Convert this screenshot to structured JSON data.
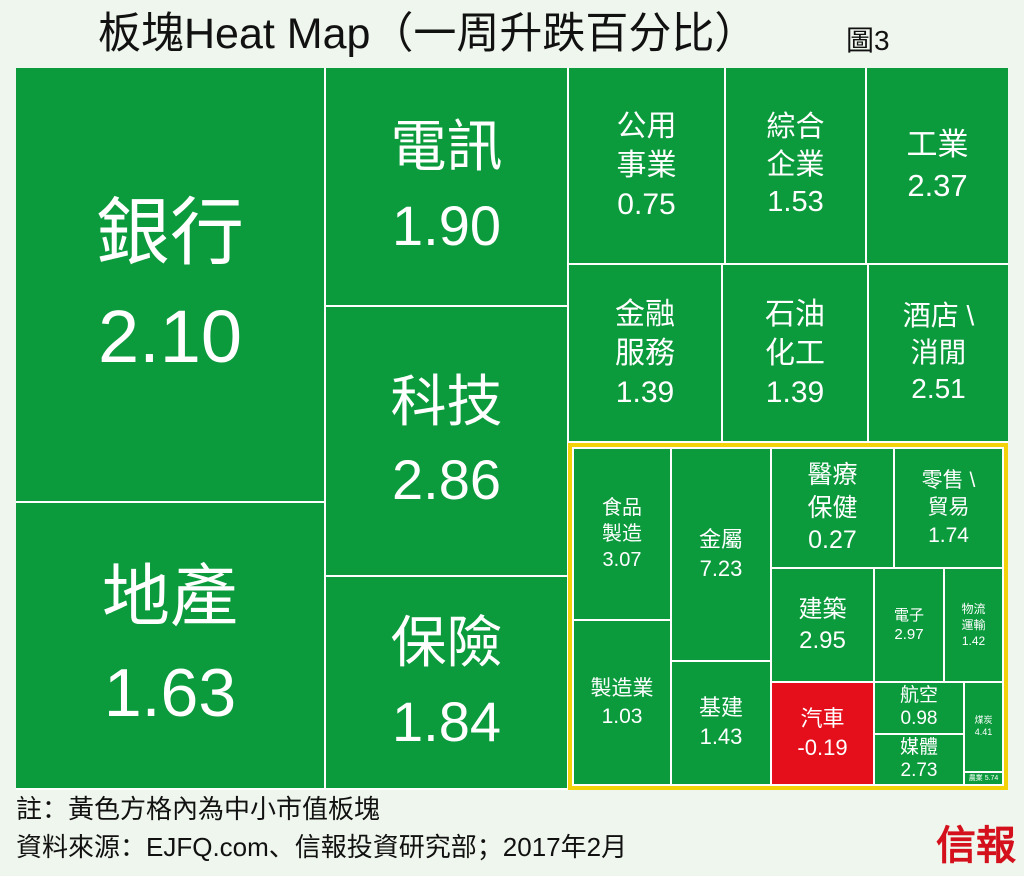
{
  "header": {
    "figure_label": "圖3"
  },
  "chart_data": {
    "type": "heatmap",
    "title": "板塊Heat Map（一周升跌百分比）",
    "colors": {
      "positive": "#0b9a3c",
      "negative": "#e50f1c",
      "highlight_border": "#f4d20a",
      "text": "#ffffff"
    },
    "tiles": [
      {
        "label": "銀行",
        "value": 2.1,
        "small_mid_cap": false
      },
      {
        "label": "地產",
        "value": 1.63,
        "small_mid_cap": false
      },
      {
        "label": "電訊",
        "value": 1.9,
        "small_mid_cap": false
      },
      {
        "label": "科技",
        "value": 2.86,
        "small_mid_cap": false
      },
      {
        "label": "保險",
        "value": 1.84,
        "small_mid_cap": false
      },
      {
        "label": "公用\n事業",
        "value": 0.75,
        "small_mid_cap": false
      },
      {
        "label": "綜合\n企業",
        "value": 1.53,
        "small_mid_cap": false
      },
      {
        "label": "工業",
        "value": 2.37,
        "small_mid_cap": false
      },
      {
        "label": "金融\n服務",
        "value": 1.39,
        "small_mid_cap": false
      },
      {
        "label": "石油\n化工",
        "value": 1.39,
        "small_mid_cap": false
      },
      {
        "label": "酒店 \\\n消閒",
        "value": 2.51,
        "small_mid_cap": false
      },
      {
        "label": "食品\n製造",
        "value": 3.07,
        "small_mid_cap": true
      },
      {
        "label": "製造業",
        "value": 1.03,
        "small_mid_cap": true
      },
      {
        "label": "金屬",
        "value": 7.23,
        "small_mid_cap": true
      },
      {
        "label": "基建",
        "value": 1.43,
        "small_mid_cap": true
      },
      {
        "label": "醫療\n保健",
        "value": 0.27,
        "small_mid_cap": true
      },
      {
        "label": "零售 \\\n貿易",
        "value": 1.74,
        "small_mid_cap": true
      },
      {
        "label": "建築",
        "value": 2.95,
        "small_mid_cap": true
      },
      {
        "label": "電子",
        "value": 2.97,
        "small_mid_cap": true
      },
      {
        "label": "物流\n運輸",
        "value": 1.42,
        "small_mid_cap": true
      },
      {
        "label": "汽車",
        "value": -0.19,
        "small_mid_cap": true
      },
      {
        "label": "航空",
        "value": 0.98,
        "small_mid_cap": true
      },
      {
        "label": "媒體",
        "value": 2.73,
        "small_mid_cap": true
      },
      {
        "label": "煤炭",
        "value": 4.41,
        "small_mid_cap": true
      },
      {
        "label": "農業",
        "value": 5.74,
        "small_mid_cap": true
      }
    ]
  },
  "footer": {
    "note": "註：黃色方格內為中小市值板塊",
    "source": "資料來源：EJFQ.com、信報投資研究部；2017年2月",
    "logo": "信報"
  }
}
